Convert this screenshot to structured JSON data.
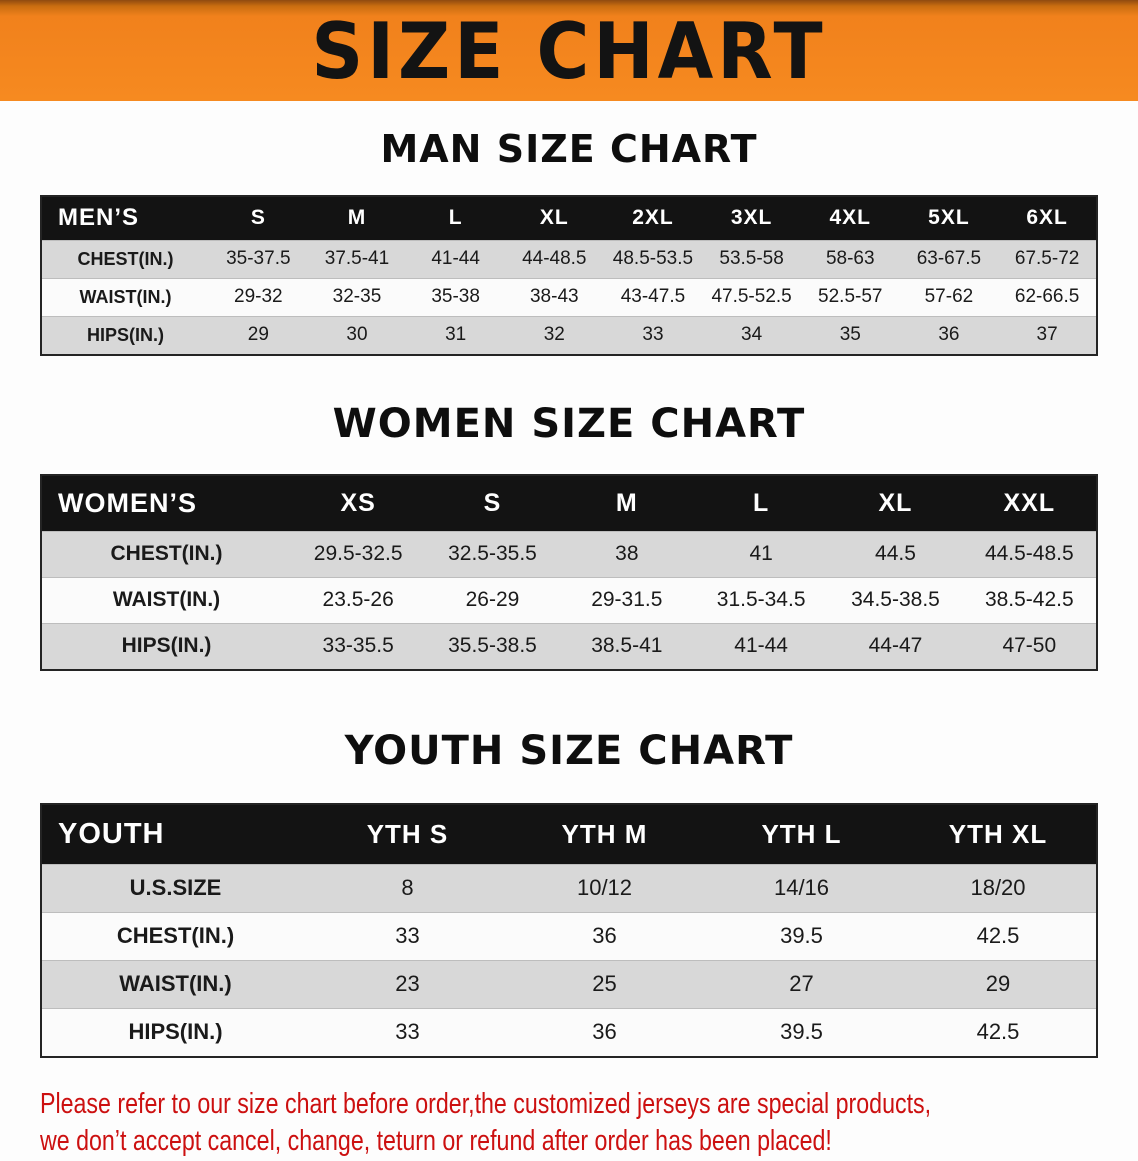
{
  "banner": {
    "title": "SIZE CHART"
  },
  "colors": {
    "banner_orange": "#f68a20",
    "table_header_bg": "#131313",
    "row_alt_gray": "#d8d8d8",
    "disclaimer_red": "#cc1010"
  },
  "sections": [
    {
      "heading": "MAN SIZE CHART",
      "table": {
        "header": [
          "MEN’S",
          "S",
          "M",
          "L",
          "XL",
          "2XL",
          "3XL",
          "4XL",
          "5XL",
          "6XL"
        ],
        "rows": [
          [
            "CHEST(IN.)",
            "35-37.5",
            "37.5-41",
            "41-44",
            "44-48.5",
            "48.5-53.5",
            "53.5-58",
            "58-63",
            "63-67.5",
            "67.5-72"
          ],
          [
            "WAIST(IN.)",
            "29-32",
            "32-35",
            "35-38",
            "38-43",
            "43-47.5",
            "47.5-52.5",
            "52.5-57",
            "57-62",
            "62-66.5"
          ],
          [
            "HIPS(IN.)",
            "29",
            "30",
            "31",
            "32",
            "33",
            "34",
            "35",
            "36",
            "37"
          ]
        ]
      }
    },
    {
      "heading": "WOMEN SIZE CHART",
      "table": {
        "header": [
          "WOMEN’S",
          "XS",
          "S",
          "M",
          "L",
          "XL",
          "XXL"
        ],
        "rows": [
          [
            "CHEST(IN.)",
            "29.5-32.5",
            "32.5-35.5",
            "38",
            "41",
            "44.5",
            "44.5-48.5"
          ],
          [
            "WAIST(IN.)",
            "23.5-26",
            "26-29",
            "29-31.5",
            "31.5-34.5",
            "34.5-38.5",
            "38.5-42.5"
          ],
          [
            "HIPS(IN.)",
            "33-35.5",
            "35.5-38.5",
            "38.5-41",
            "41-44",
            "44-47",
            "47-50"
          ]
        ]
      }
    },
    {
      "heading": "YOUTH SIZE CHART",
      "table": {
        "header": [
          "YOUTH",
          "YTH S",
          "YTH M",
          "YTH L",
          "YTH XL"
        ],
        "rows": [
          [
            "U.S.SIZE",
            "8",
            "10/12",
            "14/16",
            "18/20"
          ],
          [
            "CHEST(IN.)",
            "33",
            "36",
            "39.5",
            "42.5"
          ],
          [
            "WAIST(IN.)",
            "23",
            "25",
            "27",
            "29"
          ],
          [
            "HIPS(IN.)",
            "33",
            "36",
            "39.5",
            "42.5"
          ]
        ]
      }
    }
  ],
  "disclaimer": {
    "line1": "Please refer to our size chart before order,the customized jerseys are special products,",
    "line2": "we don’t accept cancel, change, teturn or refund after order has been placed!"
  }
}
